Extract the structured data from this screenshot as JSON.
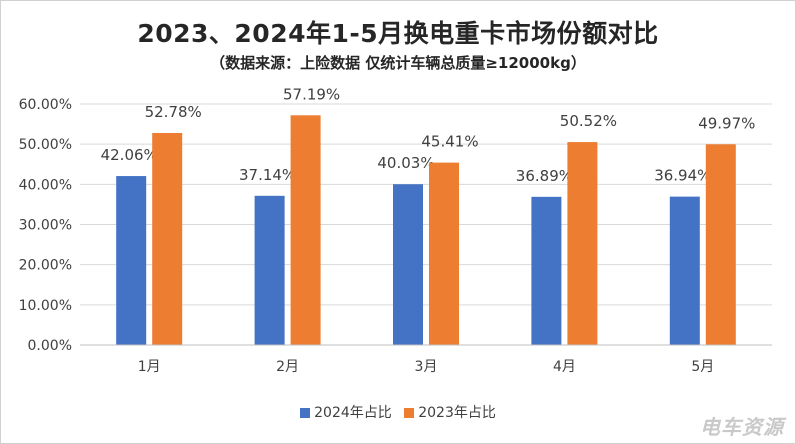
{
  "chart_data": {
    "type": "bar",
    "title": "2023、2024年1-5月换电重卡市场份额对比",
    "subtitle": "（数据来源：上险数据 仅统计车辆总质量≥12000kg）",
    "categories": [
      "1月",
      "2月",
      "3月",
      "4月",
      "5月"
    ],
    "series": [
      {
        "name": "2024年占比",
        "color": "#4472c4",
        "values": [
          42.06,
          37.14,
          40.03,
          36.89,
          36.94
        ],
        "labels": [
          "42.06%",
          "37.14%",
          "40.03%",
          "36.89%",
          "36.94%"
        ]
      },
      {
        "name": "2023年占比",
        "color": "#ed7d31",
        "values": [
          52.78,
          57.19,
          45.41,
          50.52,
          49.97
        ],
        "labels": [
          "52.78%",
          "57.19%",
          "45.41%",
          "50.52%",
          "49.97%"
        ]
      }
    ],
    "ylim": [
      0,
      60
    ],
    "yticks": [
      0,
      10,
      20,
      30,
      40,
      50,
      60
    ],
    "ytick_labels": [
      "0.00%",
      "10.00%",
      "20.00%",
      "30.00%",
      "40.00%",
      "50.00%",
      "60.00%"
    ],
    "xlabel": "",
    "ylabel": "",
    "grid": true,
    "legend_position": "bottom"
  },
  "watermark": "电车资源"
}
